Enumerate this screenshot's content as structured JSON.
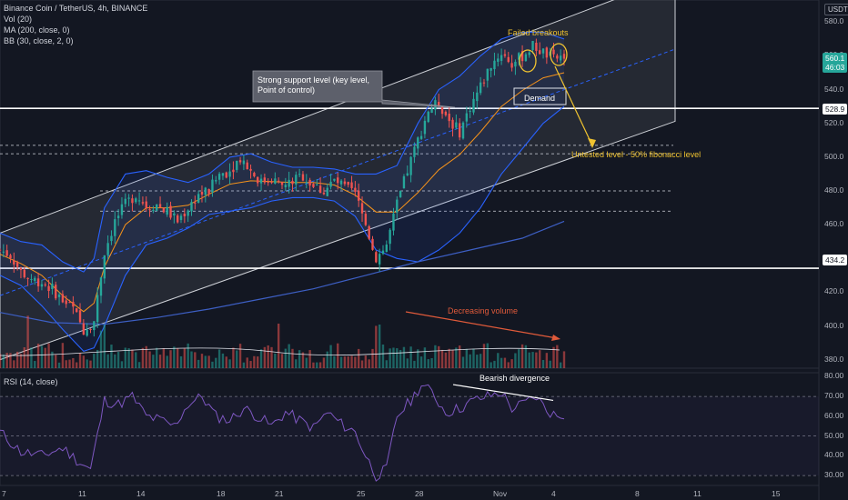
{
  "header": {
    "symbol_line": "Binance Coin / TetherUS, 4h, BINANCE",
    "vol_legend": "Vol (20)",
    "ma_legend": "MA (200, close, 0)",
    "bb_legend": "BB (30, close, 2, 0)",
    "rsi_legend": "RSI (14, close)",
    "currency_badge": "USDT"
  },
  "colors": {
    "background": "#131722",
    "up_candle": "#26a69a",
    "down_candle": "#ef5350",
    "bollinger": "#2962ff",
    "ma": "#f7931a",
    "channel": "#ffffff",
    "annotation_yellow": "#f0c330",
    "annotation_red": "#e05a3a",
    "rsi_line": "#7e57c2"
  },
  "axis": {
    "price_ticks": [
      "580.0",
      "560.0",
      "540.0",
      "520.0",
      "500.0",
      "480.0",
      "460.0",
      "440.0",
      "420.0",
      "400.0",
      "380.0"
    ],
    "rsi_ticks": [
      "80.00",
      "70.00",
      "60.00",
      "50.00",
      "40.00",
      "30.00"
    ],
    "x_ticks": [
      "7",
      "11",
      "14",
      "18",
      "21",
      "25",
      "28",
      "Nov",
      "4",
      "8",
      "11",
      "15"
    ],
    "price_badges": {
      "current_price": "560.1",
      "countdown": "46:03",
      "resistance_level": "528.9",
      "support_level": "434.2"
    }
  },
  "annotations": {
    "failed_breakouts": "Failed breakouts",
    "support_note": "Strong support level (key level, Point of control)",
    "demand": "Demand",
    "untested_level": "Untested level - 50% fibonacci level",
    "decreasing_volume": "Decreasing volume",
    "bearish_divergence": "Bearish divergence"
  },
  "chart_data": {
    "type": "candlestick",
    "series_name": "Binance Coin / TetherUS",
    "interval": "4h",
    "exchange": "BINANCE",
    "ylim": [
      375,
      585
    ],
    "rsi_ylim": [
      25,
      82
    ],
    "horizontal_levels": [
      528.9,
      434.2
    ],
    "dashed_levels": [
      507,
      502,
      480,
      468
    ],
    "close_path": [
      [
        0,
        445
      ],
      [
        3,
        442
      ],
      [
        6,
        432
      ],
      [
        9,
        428
      ],
      [
        12,
        426
      ],
      [
        15,
        422
      ],
      [
        18,
        415
      ],
      [
        21,
        410
      ],
      [
        24,
        398
      ],
      [
        27,
        403
      ],
      [
        30,
        444
      ],
      [
        33,
        462
      ],
      [
        36,
        472
      ],
      [
        39,
        478
      ],
      [
        42,
        471
      ],
      [
        45,
        472
      ],
      [
        48,
        468
      ],
      [
        51,
        462
      ],
      [
        54,
        470
      ],
      [
        57,
        478
      ],
      [
        60,
        480
      ],
      [
        63,
        490
      ],
      [
        66,
        492
      ],
      [
        69,
        500
      ],
      [
        72,
        492
      ],
      [
        75,
        485
      ],
      [
        78,
        488
      ],
      [
        81,
        482
      ],
      [
        84,
        486
      ],
      [
        87,
        489
      ],
      [
        90,
        483
      ],
      [
        93,
        480
      ],
      [
        96,
        486
      ],
      [
        99,
        482
      ],
      [
        102,
        478
      ],
      [
        105,
        460
      ],
      [
        108,
        440
      ],
      [
        111,
        448
      ],
      [
        114,
        472
      ],
      [
        117,
        492
      ],
      [
        120,
        510
      ],
      [
        123,
        528
      ],
      [
        126,
        532
      ],
      [
        129,
        522
      ],
      [
        132,
        515
      ],
      [
        135,
        530
      ],
      [
        138,
        542
      ],
      [
        141,
        555
      ],
      [
        144,
        562
      ],
      [
        147,
        555
      ],
      [
        150,
        560
      ],
      [
        153,
        566
      ],
      [
        156,
        562
      ],
      [
        159,
        558
      ],
      [
        162,
        560
      ]
    ],
    "bollinger": {
      "period": 30,
      "stdev": 2,
      "upper": [
        [
          0,
          455
        ],
        [
          6,
          450
        ],
        [
          12,
          448
        ],
        [
          18,
          438
        ],
        [
          24,
          432
        ],
        [
          27,
          440
        ],
        [
          30,
          470
        ],
        [
          36,
          490
        ],
        [
          42,
          492
        ],
        [
          48,
          488
        ],
        [
          54,
          485
        ],
        [
          60,
          490
        ],
        [
          66,
          500
        ],
        [
          72,
          502
        ],
        [
          78,
          497
        ],
        [
          84,
          494
        ],
        [
          90,
          494
        ],
        [
          96,
          493
        ],
        [
          102,
          490
        ],
        [
          108,
          490
        ],
        [
          114,
          495
        ],
        [
          120,
          520
        ],
        [
          126,
          540
        ],
        [
          132,
          548
        ],
        [
          138,
          560
        ],
        [
          144,
          570
        ],
        [
          150,
          574
        ],
        [
          156,
          574
        ],
        [
          162,
          570
        ]
      ],
      "lower": [
        [
          0,
          430
        ],
        [
          6,
          424
        ],
        [
          12,
          412
        ],
        [
          18,
          398
        ],
        [
          24,
          385
        ],
        [
          27,
          387
        ],
        [
          30,
          400
        ],
        [
          36,
          430
        ],
        [
          42,
          448
        ],
        [
          48,
          452
        ],
        [
          54,
          458
        ],
        [
          60,
          466
        ],
        [
          66,
          468
        ],
        [
          72,
          470
        ],
        [
          78,
          474
        ],
        [
          84,
          476
        ],
        [
          90,
          476
        ],
        [
          96,
          474
        ],
        [
          102,
          465
        ],
        [
          108,
          445
        ],
        [
          114,
          440
        ],
        [
          120,
          438
        ],
        [
          126,
          445
        ],
        [
          132,
          455
        ],
        [
          138,
          470
        ],
        [
          144,
          490
        ],
        [
          150,
          505
        ],
        [
          156,
          520
        ],
        [
          162,
          530
        ]
      ]
    },
    "ma200": [
      [
        0,
        408
      ],
      [
        15,
        402
      ],
      [
        30,
        401
      ],
      [
        45,
        405
      ],
      [
        60,
        410
      ],
      [
        75,
        416
      ],
      [
        90,
        422
      ],
      [
        105,
        430
      ],
      [
        120,
        438
      ],
      [
        135,
        445
      ],
      [
        150,
        452
      ],
      [
        162,
        462
      ]
    ],
    "ascending_channel": {
      "upper": [
        [
          0,
          455
        ],
        [
          162,
          582
        ]
      ],
      "lower": [
        [
          0,
          380
        ],
        [
          162,
          498
        ]
      ],
      "mid": [
        [
          0,
          418
        ],
        [
          162,
          540
        ]
      ]
    },
    "fib_50_level": 503,
    "volume_description": "Decreasing volume into highs",
    "rsi": {
      "period": 14,
      "levels": [
        70,
        50,
        30
      ],
      "path": [
        [
          0,
          52
        ],
        [
          6,
          42
        ],
        [
          12,
          40
        ],
        [
          18,
          44
        ],
        [
          22,
          38
        ],
        [
          26,
          33
        ],
        [
          30,
          68
        ],
        [
          34,
          66
        ],
        [
          38,
          70
        ],
        [
          42,
          60
        ],
        [
          46,
          58
        ],
        [
          50,
          55
        ],
        [
          54,
          66
        ],
        [
          58,
          70
        ],
        [
          62,
          60
        ],
        [
          66,
          58
        ],
        [
          70,
          64
        ],
        [
          74,
          60
        ],
        [
          78,
          55
        ],
        [
          82,
          62
        ],
        [
          86,
          58
        ],
        [
          90,
          54
        ],
        [
          94,
          62
        ],
        [
          98,
          56
        ],
        [
          102,
          52
        ],
        [
          105,
          40
        ],
        [
          108,
          30
        ],
        [
          111,
          33
        ],
        [
          114,
          60
        ],
        [
          118,
          68
        ],
        [
          121,
          76
        ],
        [
          124,
          72
        ],
        [
          128,
          62
        ],
        [
          132,
          64
        ],
        [
          136,
          68
        ],
        [
          140,
          70
        ],
        [
          144,
          72
        ],
        [
          147,
          64
        ],
        [
          150,
          66
        ],
        [
          154,
          70
        ],
        [
          157,
          63
        ],
        [
          160,
          60
        ],
        [
          162,
          61
        ]
      ]
    }
  }
}
